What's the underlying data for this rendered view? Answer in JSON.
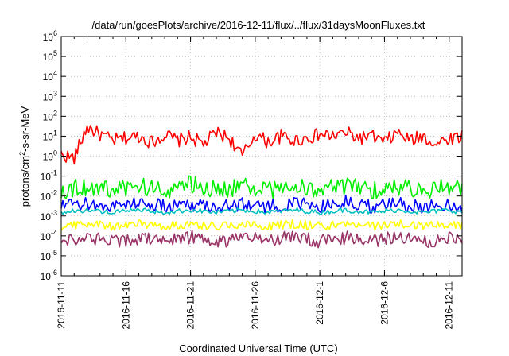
{
  "chart_data": {
    "type": "line",
    "title": "/data/run/goesPlots/archive/2016-12-11/flux/../flux/31daysMoonFluxes.txt",
    "xlabel": "Coordinated Universal Time (UTC)",
    "ylabel_parts": [
      "protons/cm",
      "2",
      "-s-sr-MeV"
    ],
    "y_scale": "log",
    "ylim": [
      1e-06,
      1000000.0
    ],
    "y_ticks": [
      {
        "base": "10",
        "exp": "-6",
        "value": 1e-06
      },
      {
        "base": "10",
        "exp": "-5",
        "value": 1e-05
      },
      {
        "base": "10",
        "exp": "-4",
        "value": 0.0001
      },
      {
        "base": "10",
        "exp": "-3",
        "value": 0.001
      },
      {
        "base": "10",
        "exp": "-2",
        "value": 0.01
      },
      {
        "base": "10",
        "exp": "-1",
        "value": 0.1
      },
      {
        "base": "10",
        "exp": "0",
        "value": 1
      },
      {
        "base": "10",
        "exp": "1",
        "value": 10
      },
      {
        "base": "10",
        "exp": "2",
        "value": 100
      },
      {
        "base": "10",
        "exp": "3",
        "value": 1000
      },
      {
        "base": "10",
        "exp": "4",
        "value": 10000
      },
      {
        "base": "10",
        "exp": "5",
        "value": 100000
      },
      {
        "base": "10",
        "exp": "6",
        "value": 1000000
      }
    ],
    "xlim": [
      "2016-11-11",
      "2016-12-12"
    ],
    "x_ticks": [
      "2016-11-11",
      "2016-11-16",
      "2016-11-21",
      "2016-11-26",
      "2016-12-1",
      "2016-12-6",
      "2016-12-11"
    ],
    "grid": true,
    "series": [
      {
        "color": "#ff0000",
        "x": [
          "2016-11-11",
          "2016-11-12",
          "2016-11-13",
          "2016-11-14",
          "2016-11-15",
          "2016-11-16",
          "2016-11-17",
          "2016-11-18",
          "2016-11-19",
          "2016-11-20",
          "2016-11-21",
          "2016-11-22",
          "2016-11-23",
          "2016-11-24",
          "2016-11-25",
          "2016-11-26",
          "2016-11-27",
          "2016-11-28",
          "2016-11-29",
          "2016-11-30",
          "2016-12-01",
          "2016-12-02",
          "2016-12-03",
          "2016-12-04",
          "2016-12-05",
          "2016-12-06",
          "2016-12-07",
          "2016-12-08",
          "2016-12-09",
          "2016-12-10",
          "2016-12-11",
          "2016-12-12"
        ],
        "values": [
          1.2,
          0.8,
          30,
          12,
          6,
          8,
          10,
          5,
          12,
          6,
          9,
          4,
          15,
          8,
          1,
          12,
          5,
          10,
          6,
          8,
          12,
          10,
          15,
          8,
          10,
          5,
          15,
          6,
          10,
          4,
          8,
          10
        ]
      },
      {
        "color": "#00ee00",
        "x": [
          "2016-11-11",
          "2016-11-13",
          "2016-11-15",
          "2016-11-17",
          "2016-11-19",
          "2016-11-21",
          "2016-11-23",
          "2016-11-25",
          "2016-11-27",
          "2016-11-29",
          "2016-12-01",
          "2016-12-03",
          "2016-12-05",
          "2016-12-07",
          "2016-12-09",
          "2016-12-11",
          "2016-12-12"
        ],
        "values": [
          0.02,
          0.03,
          0.02,
          0.03,
          0.02,
          0.04,
          0.02,
          0.03,
          0.02,
          0.03,
          0.02,
          0.03,
          0.02,
          0.03,
          0.02,
          0.03,
          0.02
        ]
      },
      {
        "color": "#0000ff",
        "x": [
          "2016-11-11",
          "2016-11-13",
          "2016-11-15",
          "2016-11-17",
          "2016-11-19",
          "2016-11-21",
          "2016-11-23",
          "2016-11-25",
          "2016-11-27",
          "2016-11-29",
          "2016-12-01",
          "2016-12-03",
          "2016-12-05",
          "2016-12-07",
          "2016-12-09",
          "2016-12-11",
          "2016-12-12"
        ],
        "values": [
          0.003,
          0.004,
          0.003,
          0.005,
          0.003,
          0.004,
          0.003,
          0.004,
          0.003,
          0.004,
          0.003,
          0.005,
          0.003,
          0.004,
          0.003,
          0.004,
          0.003
        ]
      },
      {
        "color": "#00c0c0",
        "x": [
          "2016-11-11",
          "2016-11-13",
          "2016-11-15",
          "2016-11-17",
          "2016-11-19",
          "2016-11-21",
          "2016-11-23",
          "2016-11-25",
          "2016-11-27",
          "2016-11-29",
          "2016-12-01",
          "2016-12-03",
          "2016-12-05",
          "2016-12-07",
          "2016-12-09",
          "2016-12-11",
          "2016-12-12"
        ],
        "values": [
          0.0015,
          0.002,
          0.0015,
          0.002,
          0.0015,
          0.002,
          0.0015,
          0.002,
          0.0015,
          0.002,
          0.0015,
          0.002,
          0.0015,
          0.002,
          0.0015,
          0.002,
          0.0015
        ]
      },
      {
        "color": "#ffff00",
        "x": [
          "2016-11-11",
          "2016-11-13",
          "2016-11-15",
          "2016-11-17",
          "2016-11-19",
          "2016-11-21",
          "2016-11-23",
          "2016-11-25",
          "2016-11-27",
          "2016-11-29",
          "2016-12-01",
          "2016-12-03",
          "2016-12-05",
          "2016-12-07",
          "2016-12-09",
          "2016-12-11",
          "2016-12-12"
        ],
        "values": [
          0.0003,
          0.0004,
          0.0003,
          0.0004,
          0.0003,
          0.0004,
          0.0003,
          0.0004,
          0.0003,
          0.0004,
          0.0003,
          0.0004,
          0.0003,
          0.0004,
          0.0003,
          0.0004,
          0.0003
        ]
      },
      {
        "color": "#993366",
        "x": [
          "2016-11-11",
          "2016-11-13",
          "2016-11-15",
          "2016-11-17",
          "2016-11-19",
          "2016-11-21",
          "2016-11-23",
          "2016-11-25",
          "2016-11-27",
          "2016-11-29",
          "2016-12-01",
          "2016-12-03",
          "2016-12-05",
          "2016-12-07",
          "2016-12-09",
          "2016-12-11",
          "2016-12-12"
        ],
        "values": [
          6e-05,
          8e-05,
          5e-05,
          8e-05,
          6e-05,
          9e-05,
          5e-05,
          8e-05,
          6e-05,
          9e-05,
          5e-05,
          8e-05,
          6e-05,
          9e-05,
          5e-05,
          8e-05,
          6e-05
        ]
      }
    ]
  }
}
